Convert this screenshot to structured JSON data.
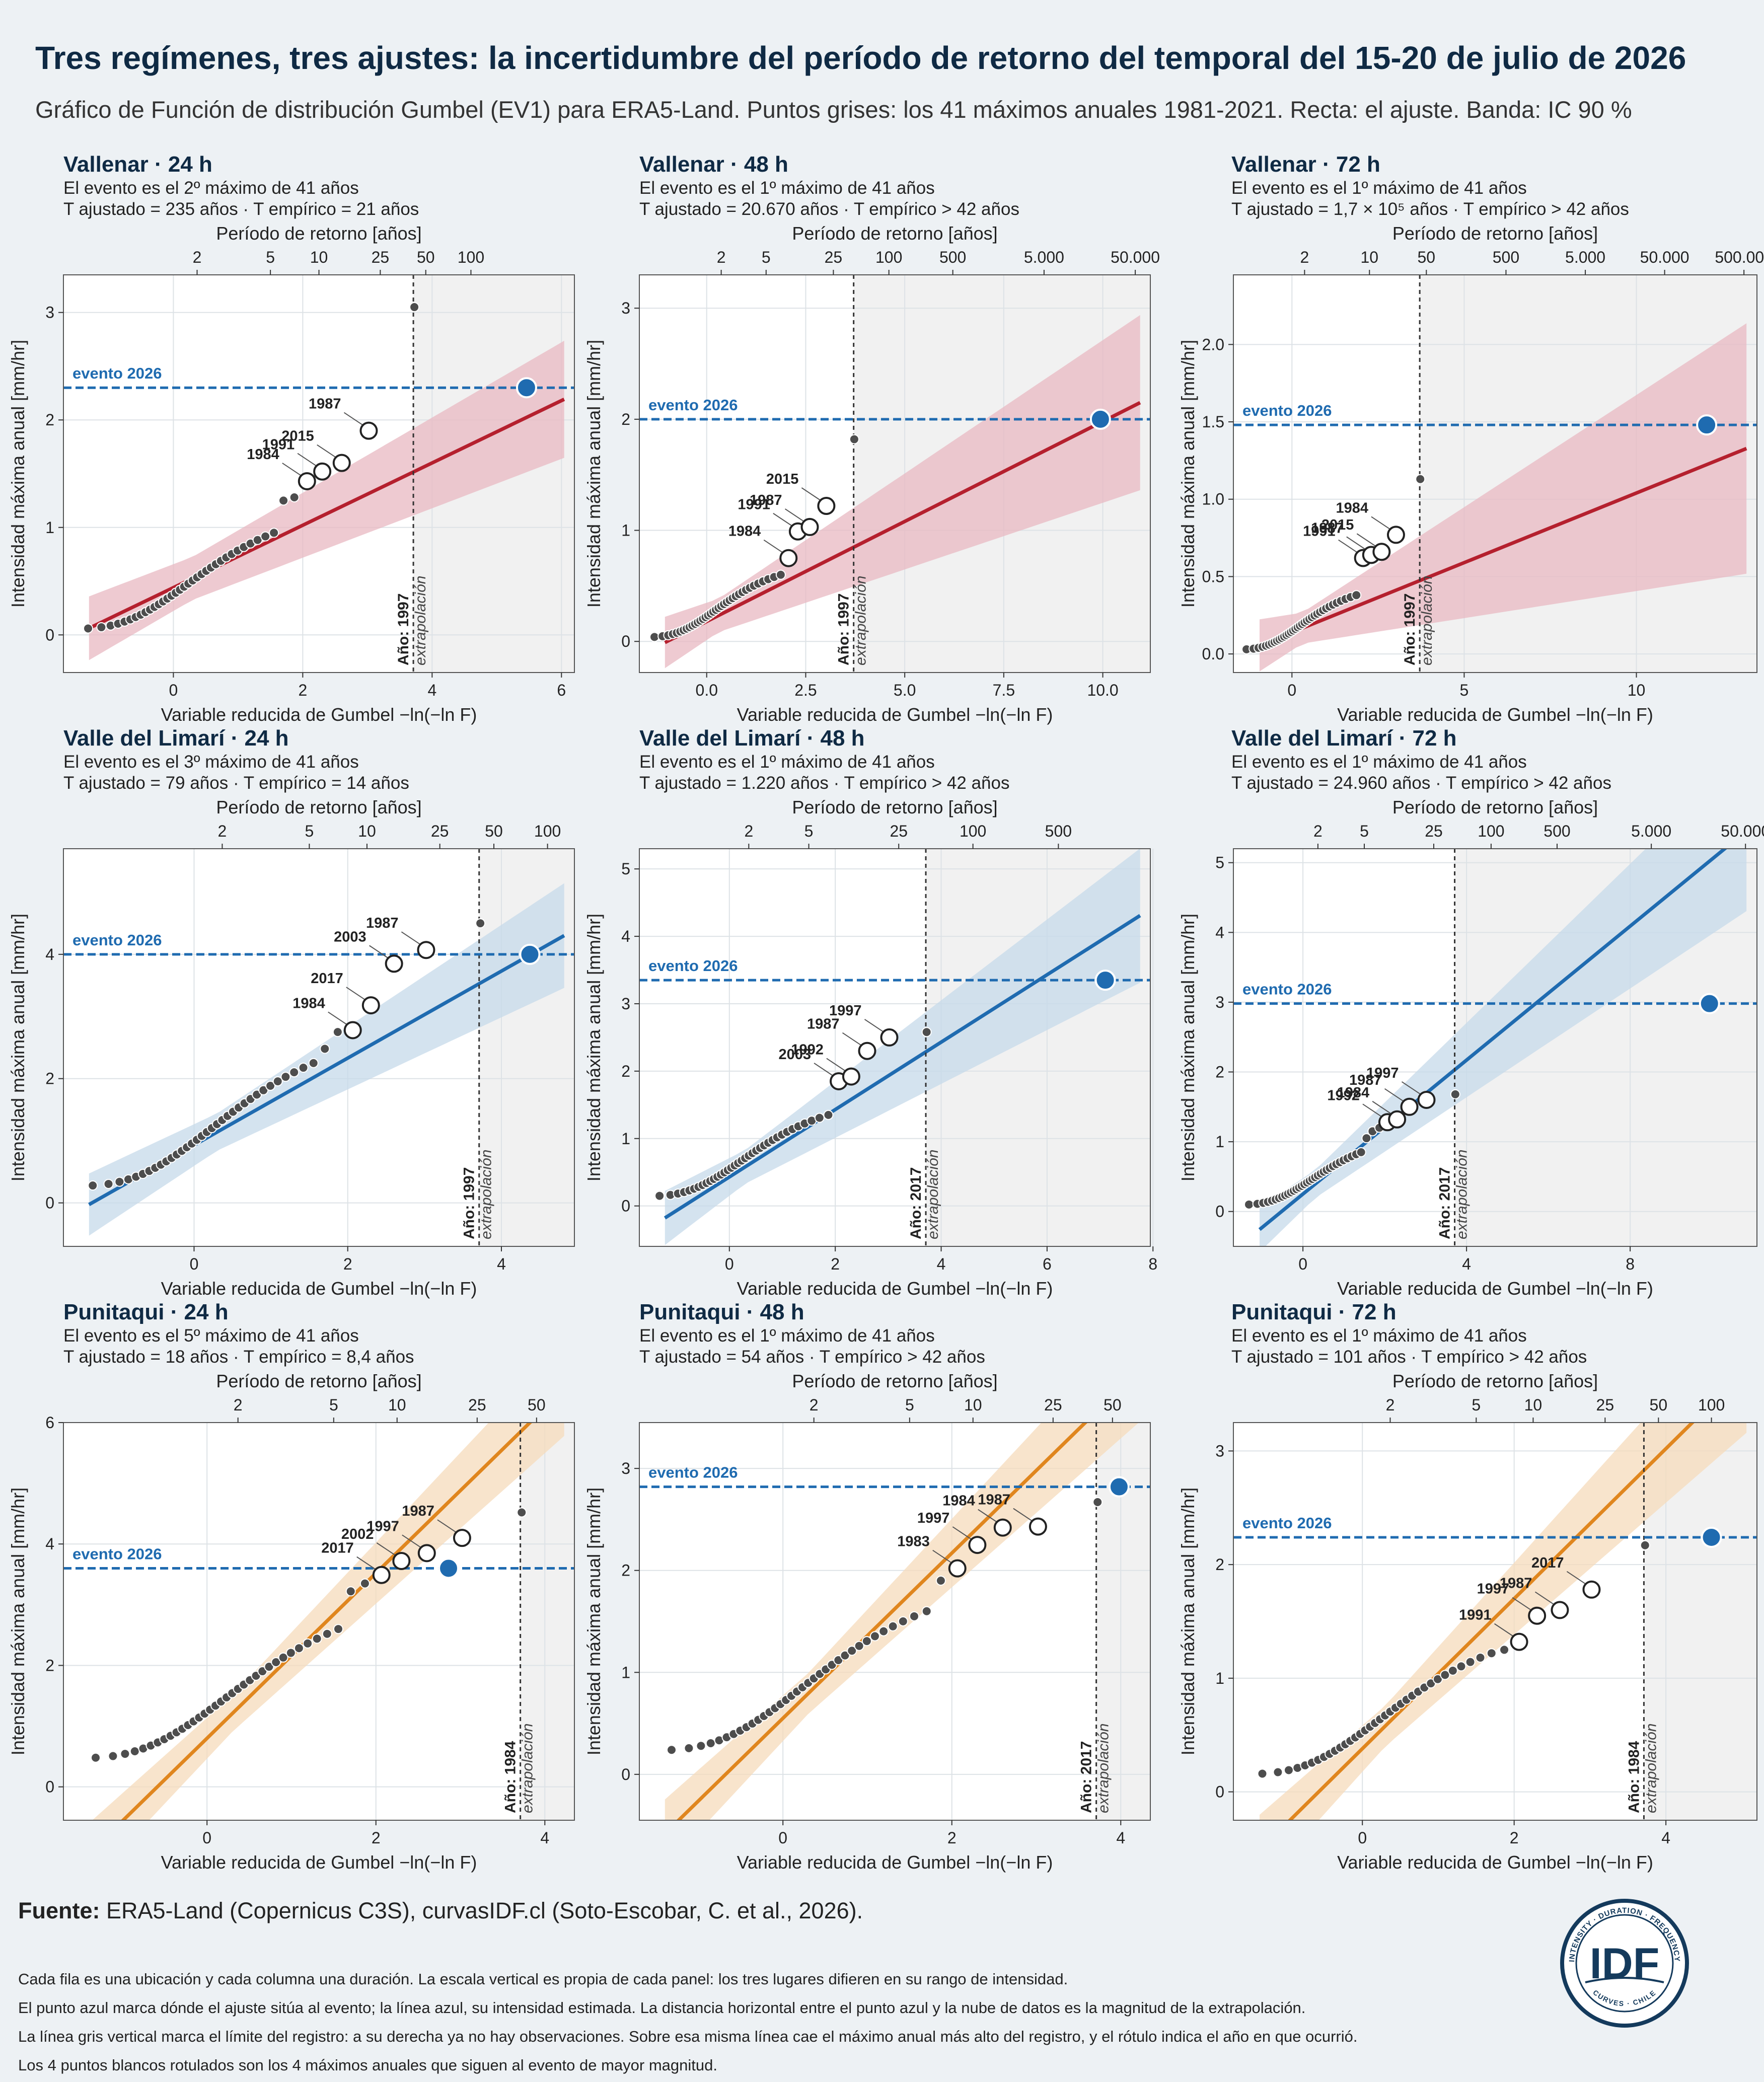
{
  "title": "Tres regímenes, tres ajustes: la incertidumbre del período de retorno del temporal del 15-20 de julio de 2026",
  "subtitle": "Gráfico de Función de distribución Gumbel (EV1) para ERA5-Land. Puntos grises: los 41 máximos anuales 1981-2021. Recta: el ajuste. Banda: IC 90 %",
  "common": {
    "x_label": "Variable reducida de Gumbel   −ln(−ln F)",
    "y_label": "Intensidad máxima anual [mm/hr]",
    "top_label": "Período de retorno [años]",
    "event_label": "evento 2026",
    "extrapolation_label": "extrapolación"
  },
  "colors": {
    "red": "#b5202e",
    "red_band": "#e8b8c1",
    "blue": "#1f6bb0",
    "blue_band": "#c6d9ea",
    "orange": "#e0861e",
    "orange_band": "#f6dbbb",
    "event": "#1f6bb0",
    "points": "#4d4d4d",
    "extrap_bg": "#dcdcdc"
  },
  "chart_data": [
    {
      "type": "scatter",
      "location": "Vallenar",
      "duration": "24 h",
      "series_color": "red",
      "line1": "El evento es el 2º máximo de 41 años",
      "line2": "T ajustado = 235 años   ·   T empírico = 21 años",
      "xlim": [
        -1.7,
        6.2
      ],
      "ylim": [
        -0.35,
        3.35
      ],
      "xticks": [
        0,
        2,
        4,
        6
      ],
      "xtick_labels": [
        "0",
        "2",
        "4",
        "6"
      ],
      "yticks": [
        0,
        1,
        2,
        3
      ],
      "ytick_labels": [
        "0",
        "1",
        "2",
        "3"
      ],
      "rp_ticks": [
        2,
        5,
        10,
        25,
        50,
        100
      ],
      "rp_labels": [
        "2",
        "5",
        "10",
        "25",
        "50",
        "100"
      ],
      "fit": {
        "a": 0.29,
        "b": 0.44
      },
      "band": {
        "c": 0.2,
        "d": 0.06
      },
      "extrap_x": 3.71,
      "extrap_year": "Año: 1997",
      "event": {
        "x": 5.46,
        "y": 2.3
      },
      "points": {
        "y_min": 0.06,
        "y_split": 0.95,
        "rest": [
          1.25,
          1.28
        ],
        "top": 3.05
      },
      "labeled": [
        {
          "year": "1984",
          "y": 1.43
        },
        {
          "year": "1991",
          "y": 1.52
        },
        {
          "year": "2015",
          "y": 1.6
        },
        {
          "year": "1987",
          "y": 1.9
        }
      ]
    },
    {
      "type": "scatter",
      "location": "Vallenar",
      "duration": "48 h",
      "series_color": "red",
      "line1": "El evento es el 1º máximo de 41 años",
      "line2": "T ajustado = 20.670 años   ·   T empírico > 42 años",
      "xlim": [
        -1.7,
        11.2
      ],
      "ylim": [
        -0.28,
        3.3
      ],
      "xticks": [
        0,
        2.5,
        5,
        7.5,
        10
      ],
      "xtick_labels": [
        "0.0",
        "2.5",
        "5.0",
        "7.5",
        "10.0"
      ],
      "yticks": [
        0,
        1,
        2,
        3
      ],
      "ytick_labels": [
        "0",
        "1",
        "2",
        "3"
      ],
      "rp_ticks": [
        2,
        5,
        25,
        100,
        500,
        5000,
        50000
      ],
      "rp_labels": [
        "2",
        "5",
        "25",
        "100",
        "500",
        "5.000",
        "50.000"
      ],
      "fit": {
        "a": 0.18,
        "b": 0.18
      },
      "band": {
        "c": 0.15,
        "d": 0.06
      },
      "extrap_x": 3.71,
      "extrap_year": "Año: 1997",
      "event": {
        "x": 9.94,
        "y": 2.0
      },
      "points": {
        "y_min": 0.04,
        "y_split": 0.6,
        "rest": [],
        "top": 1.82
      },
      "labeled": [
        {
          "year": "1984",
          "y": 0.75
        },
        {
          "year": "1991",
          "y": 0.99
        },
        {
          "year": "1987",
          "y": 1.03
        },
        {
          "year": "2015",
          "y": 1.22
        }
      ]
    },
    {
      "type": "scatter",
      "location": "Vallenar",
      "duration": "72 h",
      "series_color": "red",
      "line1": "El evento es el 1º máximo de 41 años",
      "line2": "T ajustado = 1,7 × 10⁵ años   ·   T empírico > 42 años",
      "xlim": [
        -1.7,
        13.5
      ],
      "ylim": [
        -0.12,
        2.45
      ],
      "xticks": [
        0,
        5,
        10
      ],
      "xtick_labels": [
        "0",
        "5",
        "10"
      ],
      "yticks": [
        0,
        0.5,
        1,
        1.5,
        2
      ],
      "ytick_labels": [
        "0.0",
        "0.5",
        "1.0",
        "1.5",
        "2.0"
      ],
      "rp_ticks": [
        2,
        10,
        50,
        500,
        5000,
        50000,
        500000
      ],
      "rp_labels": [
        "2",
        "10",
        "50",
        "500",
        "5.000",
        "50.000",
        "500.000"
      ],
      "fit": {
        "a": 0.09,
        "b": 0.14
      },
      "band": {
        "c": 0.1,
        "d": 0.055
      },
      "extrap_x": 3.71,
      "extrap_year": "Año: 1997",
      "event": {
        "x": 12.04,
        "y": 1.48
      },
      "points": {
        "y_min": 0.03,
        "y_split": 0.38,
        "rest": [],
        "top": 1.13
      },
      "labeled": [
        {
          "year": "1991",
          "y": 0.62
        },
        {
          "year": "1987",
          "y": 0.64
        },
        {
          "year": "1984",
          "y": 0.77
        },
        {
          "year": "2015",
          "y": 0.66
        }
      ]
    },
    {
      "type": "scatter",
      "location": "Valle del Limarí",
      "duration": "24 h",
      "series_color": "blue",
      "line1": "El evento es el 3º máximo de 41 años",
      "line2": "T ajustado = 79 años   ·   T empírico = 14 años",
      "xlim": [
        -1.7,
        4.95
      ],
      "ylim": [
        -0.7,
        5.7
      ],
      "xticks": [
        0,
        2,
        4
      ],
      "xtick_labels": [
        "0",
        "2",
        "4"
      ],
      "yticks": [
        0,
        2,
        4
      ],
      "ytick_labels": [
        "0",
        "2",
        "4"
      ],
      "rp_ticks": [
        2,
        5,
        10,
        25,
        50,
        100
      ],
      "rp_labels": [
        "2",
        "5",
        "10",
        "25",
        "50",
        "100"
      ],
      "fit": {
        "a": 0.7,
        "b": 0.93
      },
      "band": {
        "c": 0.3,
        "d": 0.12
      },
      "extrap_x": 3.71,
      "extrap_year": "Año: 1997",
      "event": {
        "x": 4.37,
        "y": 4.0
      },
      "points": {
        "y_min": 0.28,
        "y_split": 2.25,
        "rest": [
          2.48,
          2.75
        ],
        "top": 4.5
      },
      "labeled": [
        {
          "year": "1984",
          "y": 2.78
        },
        {
          "year": "2017",
          "y": 3.18
        },
        {
          "year": "2003",
          "y": 3.85
        },
        {
          "year": "1987",
          "y": 4.07
        }
      ]
    },
    {
      "type": "scatter",
      "location": "Valle del Limarí",
      "duration": "48 h",
      "series_color": "blue",
      "line1": "El evento es el 1º máximo de 41 años",
      "line2": "T ajustado = 1.220 años   ·   T empírico > 42 años",
      "xlim": [
        -1.7,
        7.95
      ],
      "ylim": [
        -0.6,
        5.3
      ],
      "xticks": [
        0,
        2,
        4,
        6,
        8
      ],
      "xtick_labels": [
        "0",
        "2",
        "4",
        "6",
        "8"
      ],
      "yticks": [
        0,
        1,
        2,
        3,
        4,
        5
      ],
      "ytick_labels": [
        "0",
        "1",
        "2",
        "3",
        "4",
        "5"
      ],
      "rp_ticks": [
        2,
        5,
        25,
        100,
        500
      ],
      "rp_labels": [
        "2",
        "5",
        "25",
        "100",
        "500"
      ],
      "fit": {
        "a": 0.5,
        "b": 0.43
      },
      "band": {
        "c": 0.25,
        "d": 0.1
      },
      "extrap_x": 3.71,
      "extrap_year": "Año: 2017",
      "event": {
        "x": 7.1,
        "y": 3.35
      },
      "points": {
        "y_min": 0.15,
        "y_split": 1.35,
        "rest": [],
        "top": 2.58
      },
      "labeled": [
        {
          "year": "2003",
          "y": 1.85
        },
        {
          "year": "1992",
          "y": 1.92
        },
        {
          "year": "1987",
          "y": 2.3
        },
        {
          "year": "1997",
          "y": 2.5
        }
      ]
    },
    {
      "type": "scatter",
      "location": "Valle del Limarí",
      "duration": "72 h",
      "series_color": "blue",
      "line1": "El evento es el 1º máximo de 41 años",
      "line2": "T ajustado = 24.960 años   ·   T empírico > 42 años",
      "xlim": [
        -1.7,
        11.1
      ],
      "ylim": [
        -0.5,
        5.2
      ],
      "xticks": [
        0,
        4,
        8
      ],
      "xtick_labels": [
        "0",
        "4",
        "8"
      ],
      "yticks": [
        0,
        1,
        2,
        3,
        4,
        5
      ],
      "ytick_labels": [
        "0",
        "1",
        "2",
        "3",
        "4",
        "5"
      ],
      "rp_ticks": [
        2,
        5,
        25,
        100,
        500,
        5000,
        50000
      ],
      "rp_labels": [
        "2",
        "5",
        "25",
        "100",
        "500",
        "5.000",
        "50.000"
      ],
      "fit": {
        "a": 0.48,
        "b": 0.25
      },
      "band": {
        "c": 0.2,
        "d": 0.09
      },
      "extrap_x": 3.71,
      "extrap_year": "Año: 2017",
      "event": {
        "x": 9.94,
        "y": 2.98
      },
      "points": {
        "y_min": 0.1,
        "y_split": 0.85,
        "rest": [
          1.05,
          1.15,
          1.2
        ],
        "top": 1.68
      },
      "labeled": [
        {
          "year": "1992",
          "y": 1.28
        },
        {
          "year": "1984",
          "y": 1.32
        },
        {
          "year": "1987",
          "y": 1.5
        },
        {
          "year": "1997",
          "y": 1.6
        }
      ]
    },
    {
      "type": "scatter",
      "location": "Punitaqui",
      "duration": "24 h",
      "series_color": "orange",
      "line1": "El evento es el 5º máximo de 41 años",
      "line2": "T ajustado = 18 años   ·   T empírico = 8,4 años",
      "xlim": [
        -1.7,
        4.35
      ],
      "ylim": [
        -0.55,
        6.0
      ],
      "xticks": [
        0,
        2,
        4
      ],
      "xtick_labels": [
        "0",
        "2",
        "4"
      ],
      "yticks": [
        0,
        2,
        4,
        6
      ],
      "ytick_labels": [
        "0",
        "2",
        "4",
        "6"
      ],
      "rp_ticks": [
        2,
        5,
        10,
        25,
        50
      ],
      "rp_labels": [
        "2",
        "5",
        "10",
        "25",
        "50"
      ],
      "fit": {
        "a": 1.36,
        "b": 0.8
      },
      "band": {
        "c": 0.3,
        "d": 0.12
      },
      "extrap_x": 3.71,
      "extrap_year": "Año: 1984",
      "event": {
        "x": 2.86,
        "y": 3.6
      },
      "points": {
        "y_min": 0.48,
        "y_split": 2.6,
        "rest": [
          3.22,
          3.35
        ],
        "top": 4.52
      },
      "labeled": [
        {
          "year": "2017",
          "y": 3.49
        },
        {
          "year": "2002",
          "y": 3.72
        },
        {
          "year": "1997",
          "y": 3.85
        },
        {
          "year": "1987",
          "y": 4.1
        }
      ]
    },
    {
      "type": "scatter",
      "location": "Punitaqui",
      "duration": "48 h",
      "series_color": "orange",
      "line1": "El evento es el 1º máximo de 41 años",
      "line2": "T ajustado = 54 años   ·   T empírico > 42 años",
      "xlim": [
        -1.7,
        4.35
      ],
      "ylim": [
        -0.45,
        3.45
      ],
      "xticks": [
        0,
        2,
        4
      ],
      "xtick_labels": [
        "0",
        "2",
        "4"
      ],
      "yticks": [
        0,
        1,
        2,
        3
      ],
      "ytick_labels": [
        "0",
        "1",
        "2",
        "3"
      ],
      "rp_ticks": [
        2,
        5,
        10,
        25,
        50
      ],
      "rp_labels": [
        "2",
        "5",
        "10",
        "25",
        "50"
      ],
      "fit": {
        "a": 0.81,
        "b": 0.55
      },
      "band": {
        "c": 0.2,
        "d": 0.08
      },
      "extrap_x": 3.71,
      "extrap_year": "Año: 2017",
      "event": {
        "x": 3.98,
        "y": 2.82
      },
      "points": {
        "y_min": 0.24,
        "y_split": 1.6,
        "rest": [
          1.9
        ],
        "top": 2.67
      },
      "labeled": [
        {
          "year": "1983",
          "y": 2.02
        },
        {
          "year": "1997",
          "y": 2.25
        },
        {
          "year": "1984",
          "y": 2.42
        },
        {
          "year": "1987",
          "y": 2.43
        }
      ]
    },
    {
      "type": "scatter",
      "location": "Punitaqui",
      "duration": "72 h",
      "series_color": "orange",
      "line1": "El evento es el 1º máximo de 41 años",
      "line2": "T ajustado = 101 años   ·   T empírico > 42 años",
      "xlim": [
        -1.7,
        5.2
      ],
      "ylim": [
        -0.25,
        3.25
      ],
      "xticks": [
        0,
        2,
        4
      ],
      "xtick_labels": [
        "0",
        "2",
        "4"
      ],
      "yticks": [
        0,
        1,
        2,
        3
      ],
      "ytick_labels": [
        "0",
        "1",
        "2",
        "3"
      ],
      "rp_ticks": [
        2,
        5,
        10,
        25,
        50,
        100
      ],
      "rp_labels": [
        "2",
        "5",
        "10",
        "25",
        "50",
        "100"
      ],
      "fit": {
        "a": 0.66,
        "b": 0.38
      },
      "band": {
        "c": 0.18,
        "d": 0.08
      },
      "extrap_x": 3.71,
      "extrap_year": "Año: 1984",
      "event": {
        "x": 4.6,
        "y": 2.24
      },
      "points": {
        "y_min": 0.16,
        "y_split": 1.22,
        "rest": [
          1.25
        ],
        "top": 2.17
      },
      "labeled": [
        {
          "year": "1991",
          "y": 1.32
        },
        {
          "year": "1997",
          "y": 1.55
        },
        {
          "year": "1987",
          "y": 1.6
        },
        {
          "year": "2017",
          "y": 1.78
        }
      ]
    }
  ],
  "footer": {
    "source_label": "Fuente:",
    "source_text": " ERA5-Land (Copernicus C3S), curvasIDF.cl (Soto-Escobar, C. et al., 2026).",
    "notes": [
      "Cada fila es una ubicación y cada columna una duración. La escala vertical es propia de cada panel: los tres lugares difieren en su rango de intensidad.",
      "El punto azul marca dónde el ajuste sitúa al evento; la línea azul, su intensidad estimada. La distancia horizontal entre el punto azul y la nube de datos es la magnitud de la extrapolación.",
      "La línea gris vertical marca el límite del registro: a su derecha ya no hay observaciones. Sobre esa misma línea cae el máximo anual más alto del registro, y el rótulo indica el año en que ocurrió.",
      "Los 4 puntos blancos rotulados son los 4 máximos anuales que siguen al evento de mayor magnitud."
    ]
  },
  "logo": {
    "main": "IDF",
    "ring_top": "INTENSITY · DURATION · FREQUENCY",
    "ring_bottom": "CURVES · CHILE"
  }
}
